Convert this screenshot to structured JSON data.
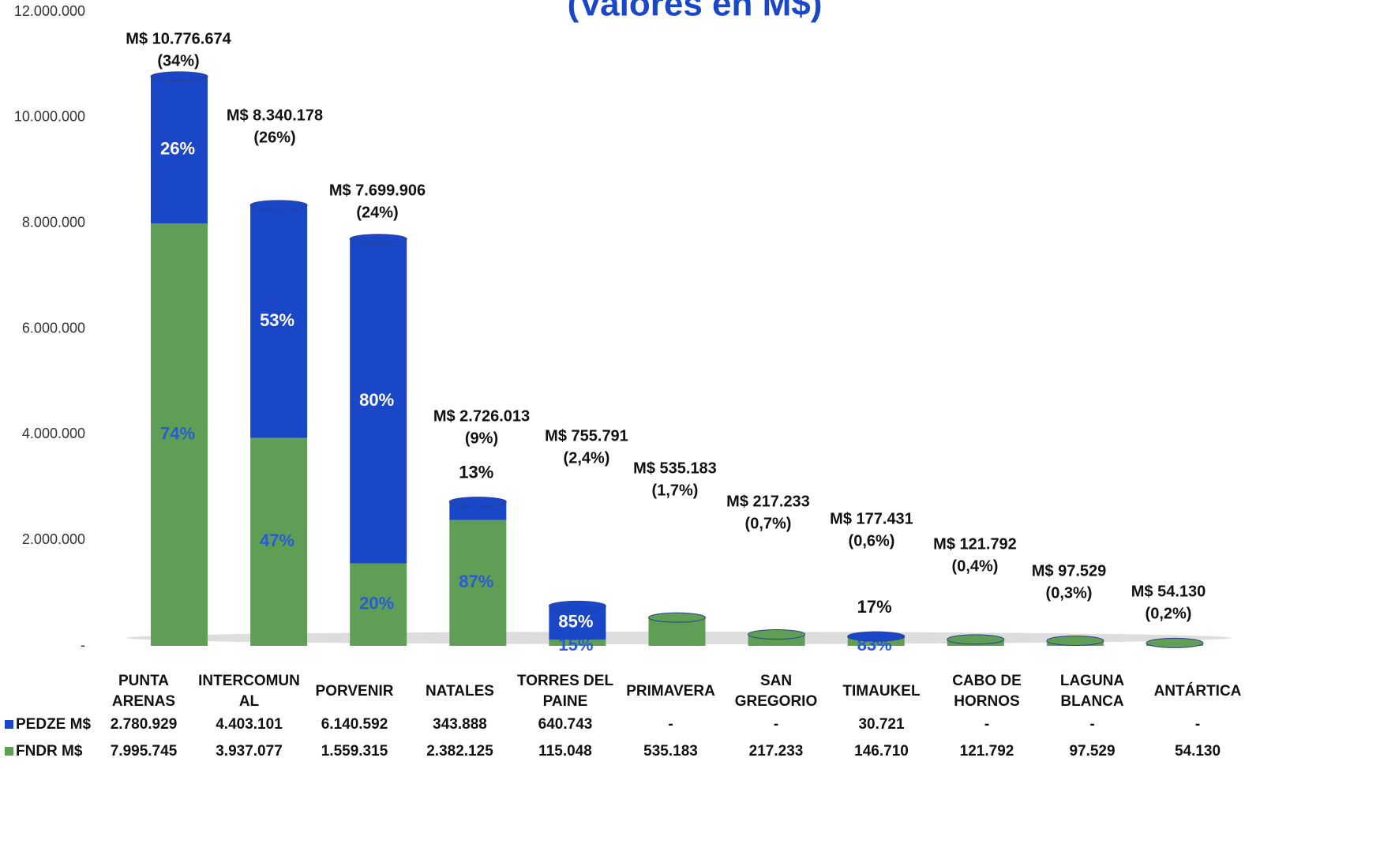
{
  "chart_data": {
    "type": "stacked_bar",
    "title": "(Valores en M$)",
    "categories": [
      "PUNTA\nARENAS",
      "INTERCOMUN\nAL",
      "PORVENIR",
      "NATALES",
      "TORRES DEL\nPAINE",
      "PRIMAVERA",
      "SAN\nGREGORIO",
      "TIMAUKEL",
      "CABO DE\nHORNOS",
      "LAGUNA\nBLANCA",
      "ANTÁRTICA"
    ],
    "series": [
      {
        "name": "FNDR M$",
        "color": "#5f9e55",
        "values": [
          7995745,
          3937077,
          1559315,
          2382125,
          115048,
          535183,
          217233,
          146710,
          121792,
          97529,
          54130
        ],
        "value_labels": [
          "7.995.745",
          "3.937.077",
          "1.559.315",
          "2.382.125",
          "115.048",
          "535.183",
          "217.233",
          "146.710",
          "121.792",
          "97.529",
          "54.130"
        ],
        "pct_labels": [
          "74%",
          "47%",
          "20%",
          "87%",
          "15%",
          null,
          null,
          "83%",
          null,
          null,
          null
        ]
      },
      {
        "name": "PEDZE M$",
        "color": "#1a47c8",
        "values": [
          2780929,
          4403101,
          6140592,
          343888,
          640743,
          0,
          0,
          30721,
          0,
          0,
          0
        ],
        "value_labels": [
          "2.780.929",
          "4.403.101",
          "6.140.592",
          "343.888",
          "640.743",
          "-",
          "-",
          "30.721",
          "-",
          "-",
          "-"
        ],
        "pct_labels": [
          "26%",
          "53%",
          "80%",
          "13%",
          "85%",
          null,
          null,
          "17%",
          null,
          null,
          null
        ]
      }
    ],
    "total_labels": [
      "M$ 10.776.674",
      "M$ 8.340.178",
      "M$ 7.699.906",
      "M$ 2.726.013",
      "M$ 755.791",
      "M$ 535.183",
      "M$ 217.233",
      "M$ 177.431",
      "M$ 121.792",
      "M$ 97.529",
      "M$ 54.130"
    ],
    "share_labels": [
      "(34%)",
      "(26%)",
      "(24%)",
      "(9%)",
      "(2,4%)",
      "(1,7%)",
      "(0,7%)",
      "(0,6%)",
      "(0,4%)",
      "(0,3%)",
      "(0,2%)"
    ],
    "ylim": [
      0,
      12000000
    ],
    "yticks": [
      {
        "value": 0,
        "label": "-"
      },
      {
        "value": 2000000,
        "label": "2.000.000"
      },
      {
        "value": 4000000,
        "label": "4.000.000"
      },
      {
        "value": 6000000,
        "label": "6.000.000"
      },
      {
        "value": 8000000,
        "label": "8.000.000"
      },
      {
        "value": 10000000,
        "label": "10.000.000"
      },
      {
        "value": 12000000,
        "label": "12.000.000"
      }
    ]
  }
}
